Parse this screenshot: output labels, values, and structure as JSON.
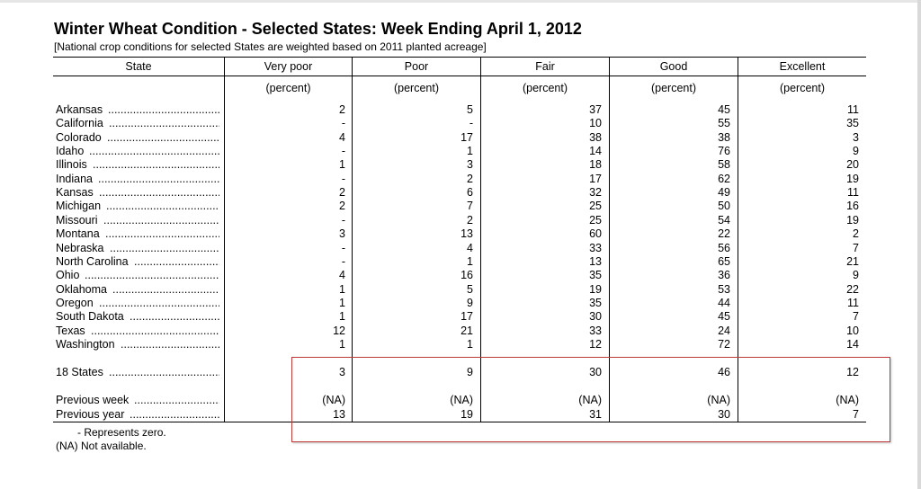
{
  "title": "Winter Wheat Condition - Selected States: Week Ending April 1, 2012",
  "subtitle": "[National crop conditions for selected States are weighted based on 2011 planted acreage]",
  "columns": [
    "State",
    "Very poor",
    "Poor",
    "Fair",
    "Good",
    "Excellent"
  ],
  "unit_label": "(percent)",
  "rows": [
    {
      "state": "Arkansas",
      "values": [
        "2",
        "5",
        "37",
        "45",
        "11"
      ]
    },
    {
      "state": "California",
      "values": [
        "-",
        "-",
        "10",
        "55",
        "35"
      ]
    },
    {
      "state": "Colorado",
      "values": [
        "4",
        "17",
        "38",
        "38",
        "3"
      ]
    },
    {
      "state": "Idaho",
      "values": [
        "-",
        "1",
        "14",
        "76",
        "9"
      ]
    },
    {
      "state": "Illinois",
      "values": [
        "1",
        "3",
        "18",
        "58",
        "20"
      ]
    },
    {
      "state": "Indiana",
      "values": [
        "-",
        "2",
        "17",
        "62",
        "19"
      ]
    },
    {
      "state": "Kansas",
      "values": [
        "2",
        "6",
        "32",
        "49",
        "11"
      ]
    },
    {
      "state": "Michigan",
      "values": [
        "2",
        "7",
        "25",
        "50",
        "16"
      ]
    },
    {
      "state": "Missouri",
      "values": [
        "-",
        "2",
        "25",
        "54",
        "19"
      ]
    },
    {
      "state": "Montana",
      "values": [
        "3",
        "13",
        "60",
        "22",
        "2"
      ]
    },
    {
      "state": "Nebraska",
      "values": [
        "-",
        "4",
        "33",
        "56",
        "7"
      ]
    },
    {
      "state": "North Carolina",
      "values": [
        "-",
        "1",
        "13",
        "65",
        "21"
      ]
    },
    {
      "state": "Ohio",
      "values": [
        "4",
        "16",
        "35",
        "36",
        "9"
      ]
    },
    {
      "state": "Oklahoma",
      "values": [
        "1",
        "5",
        "19",
        "53",
        "22"
      ]
    },
    {
      "state": "Oregon",
      "values": [
        "1",
        "9",
        "35",
        "44",
        "11"
      ]
    },
    {
      "state": "South Dakota",
      "values": [
        "1",
        "17",
        "30",
        "45",
        "7"
      ]
    },
    {
      "state": "Texas",
      "values": [
        "12",
        "21",
        "33",
        "24",
        "10"
      ]
    },
    {
      "state": "Washington",
      "values": [
        "1",
        "1",
        "12",
        "72",
        "14"
      ]
    }
  ],
  "summary": {
    "state": "18 States",
    "values": [
      "3",
      "9",
      "30",
      "46",
      "12"
    ]
  },
  "previous_week": {
    "state": "Previous week",
    "values": [
      "(NA)",
      "(NA)",
      "(NA)",
      "(NA)",
      "(NA)"
    ]
  },
  "previous_year": {
    "state": "Previous year",
    "values": [
      "13",
      "19",
      "31",
      "30",
      "7"
    ]
  },
  "footnotes": [
    "- Represents zero.",
    "(NA) Not available."
  ],
  "colors": {
    "highlight_border": "#c23b3b"
  }
}
